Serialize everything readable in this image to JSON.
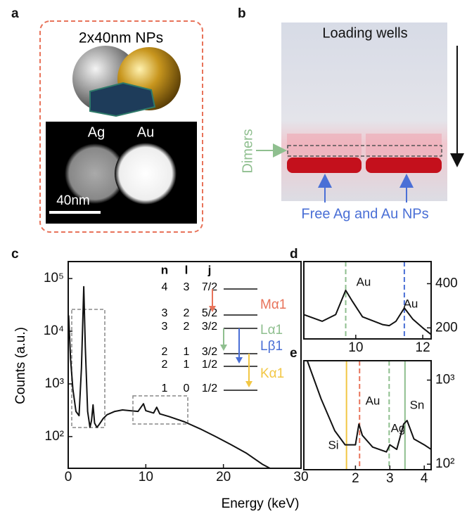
{
  "panel_labels": [
    "a",
    "b",
    "c",
    "d",
    "e"
  ],
  "panel_a": {
    "title": "2x40nm NPs",
    "left_label": "Ag",
    "right_label": "Au",
    "scale_bar": "40nm"
  },
  "panel_b": {
    "top_label": "Loading wells",
    "side_label": "Dimers",
    "bottom_label": "Free Ag and Au NPs"
  },
  "chart_data": [
    {
      "type": "line",
      "x_label": "Energy (keV)",
      "y_label": "Counts (a.u.)",
      "log_y": true,
      "color": "#111111",
      "x": [
        0.05,
        0.3,
        0.6,
        1.0,
        1.4,
        1.7,
        2.0,
        2.2,
        2.5,
        2.8,
        3.0,
        3.2,
        3.4,
        3.7,
        4.0,
        4.5,
        5,
        6,
        7,
        8,
        9.0,
        9.7,
        10.0,
        11.0,
        11.4,
        11.8,
        13,
        15,
        17,
        19,
        21,
        23,
        25,
        26
      ],
      "values": [
        20000,
        3000,
        800,
        300,
        250,
        2000,
        70000,
        5000,
        300,
        150,
        200,
        400,
        180,
        150,
        170,
        220,
        260,
        300,
        320,
        310,
        300,
        420,
        310,
        280,
        360,
        270,
        240,
        190,
        140,
        100,
        70,
        48,
        30,
        25
      ],
      "xlim": [
        0,
        30
      ],
      "ylim": [
        25,
        210000
      ],
      "xticks": [
        0,
        10,
        20,
        30
      ],
      "yticks": [
        {
          "value": 100,
          "label": "10²"
        },
        {
          "value": 1000,
          "label": "10³"
        },
        {
          "value": 10000,
          "label": "10⁴"
        },
        {
          "value": 100000,
          "label": "10⁵"
        }
      ],
      "energy_levels": {
        "headers": [
          "n",
          "l",
          "j"
        ],
        "rows": [
          [
            "4",
            "3",
            "7/2"
          ],
          [
            "3",
            "2",
            "5/2"
          ],
          [
            "3",
            "2",
            "3/2"
          ],
          [
            "2",
            "1",
            "3/2"
          ],
          [
            "2",
            "1",
            "1/2"
          ],
          [
            "1",
            "0",
            "1/2"
          ]
        ],
        "transitions": [
          {
            "label": "Mα1",
            "color": "#e8735a"
          },
          {
            "label": "Lα1",
            "color": "#8fbf8f"
          },
          {
            "label": "Lβ1",
            "color": "#4a6fd6"
          },
          {
            "label": "Kα1",
            "color": "#f2c744"
          }
        ]
      }
    },
    {
      "type": "line",
      "log_y": false,
      "color": "#111111",
      "x": [
        8.45,
        9.0,
        9.4,
        9.7,
        9.9,
        10.2,
        10.8,
        11.0,
        11.2,
        11.45,
        11.7,
        12.0,
        12.25
      ],
      "values": [
        260,
        230,
        260,
        370,
        320,
        250,
        215,
        210,
        230,
        290,
        240,
        200,
        170
      ],
      "xlim": [
        8.45,
        12.25
      ],
      "ylim": [
        150,
        500
      ],
      "xticks": [
        10,
        12
      ],
      "yticks": [
        200,
        400
      ],
      "vlines": [
        {
          "x": 9.7,
          "color": "#8fbf8f",
          "label": "Au"
        },
        {
          "x": 11.45,
          "color": "#4a6fd6",
          "label": "Au"
        }
      ]
    },
    {
      "type": "line",
      "log_y": true,
      "color": "#111111",
      "x": [
        0.6,
        1.0,
        1.4,
        1.7,
        2.0,
        2.1,
        2.2,
        2.5,
        2.9,
        3.0,
        3.2,
        3.4,
        3.5,
        3.7,
        4.0,
        4.2
      ],
      "values": [
        1700,
        600,
        250,
        170,
        170,
        300,
        220,
        160,
        140,
        170,
        150,
        300,
        330,
        200,
        170,
        150
      ],
      "xlim": [
        0.5,
        4.2
      ],
      "ylim": [
        86,
        1700
      ],
      "xticks": [
        2,
        3,
        4
      ],
      "yticks": [
        {
          "value": 100,
          "label": "10²"
        },
        {
          "value": 1000,
          "label": "10³"
        }
      ],
      "vlines": [
        {
          "x": 1.74,
          "color": "#f2c744",
          "label": "Si"
        },
        {
          "x": 2.12,
          "color": "#e8735a",
          "label": "Au"
        },
        {
          "x": 2.98,
          "color": "#8fbf8f",
          "label": "Ag"
        },
        {
          "x": 3.44,
          "color": "#8fbf8f",
          "label": "Sn"
        }
      ]
    }
  ]
}
